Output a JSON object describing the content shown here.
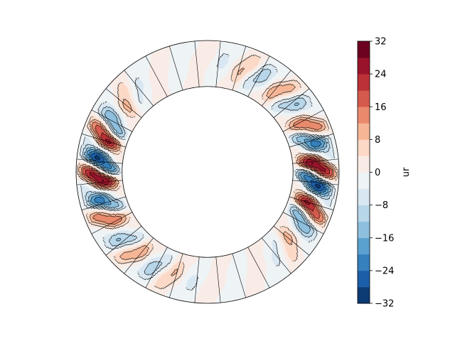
{
  "chart_data": {
    "type": "heatmap",
    "projection": "polar-annulus",
    "title": "",
    "colorbar": {
      "label": "ur",
      "range": [
        -32,
        32
      ],
      "levels": [
        -32,
        -28,
        -24,
        -20,
        -16,
        -12,
        -8,
        -4,
        0,
        4,
        8,
        12,
        16,
        20,
        24,
        28,
        32
      ],
      "ticks": [
        -32,
        -24,
        -16,
        -8,
        0,
        8,
        16,
        24,
        32
      ],
      "tick_labels": [
        "−32",
        "−24",
        "−16",
        "−8",
        "0",
        "8",
        "16",
        "24",
        "32"
      ],
      "colormap": "RdBu_r",
      "colors": [
        "#0d3b73",
        "#1d5ea8",
        "#3580bd",
        "#5aa1cf",
        "#8ec0de",
        "#b7d6e9",
        "#d8e7f1",
        "#eef3f6",
        "#f9ece6",
        "#fbd9c6",
        "#f6b696",
        "#ea8a6d",
        "#d45a4d",
        "#bb3137",
        "#99142a",
        "#6c0220"
      ]
    },
    "annulus": {
      "inner_radius_ratio": 0.65,
      "sectors": 32
    },
    "grid": true,
    "legend": "colorbar-right"
  }
}
